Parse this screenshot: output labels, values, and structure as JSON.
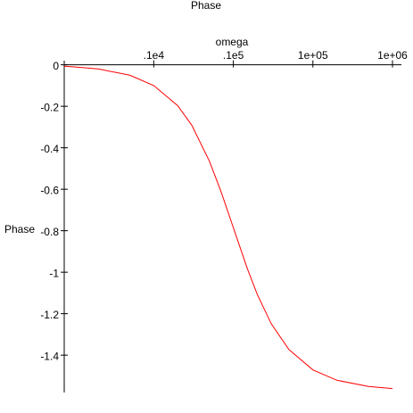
{
  "chart_data": {
    "type": "line",
    "title": "Phase",
    "x_label": "omega",
    "y_label": "Phase",
    "x": [
      75,
      100,
      200,
      500,
      1000,
      2000,
      3000,
      5000,
      7000,
      10000,
      15000,
      20000,
      30000,
      50000,
      100000,
      200000,
      500000,
      1000000
    ],
    "series": [
      {
        "name": "Phase",
        "color": "#ff0000",
        "values": [
          -0.007,
          -0.01,
          -0.02,
          -0.05,
          -0.1,
          -0.197,
          -0.291,
          -0.464,
          -0.611,
          -0.785,
          -0.983,
          -1.107,
          -1.249,
          -1.373,
          -1.471,
          -1.521,
          -1.551,
          -1.561
        ]
      }
    ],
    "xscale": "log",
    "xlim": [
      75,
      1000000
    ],
    "xticks": [
      {
        "value": 1000,
        "label": ".1e4"
      },
      {
        "value": 10000,
        "label": ".1e5"
      },
      {
        "value": 100000,
        "label": "1e+05"
      },
      {
        "value": 1000000,
        "label": "1e+06"
      }
    ],
    "ylim": [
      -1.58,
      0.02
    ],
    "yticks": [
      0,
      -0.2,
      -0.4,
      -0.6,
      -0.8,
      -1,
      -1.2,
      -1.4
    ],
    "grid": false
  }
}
